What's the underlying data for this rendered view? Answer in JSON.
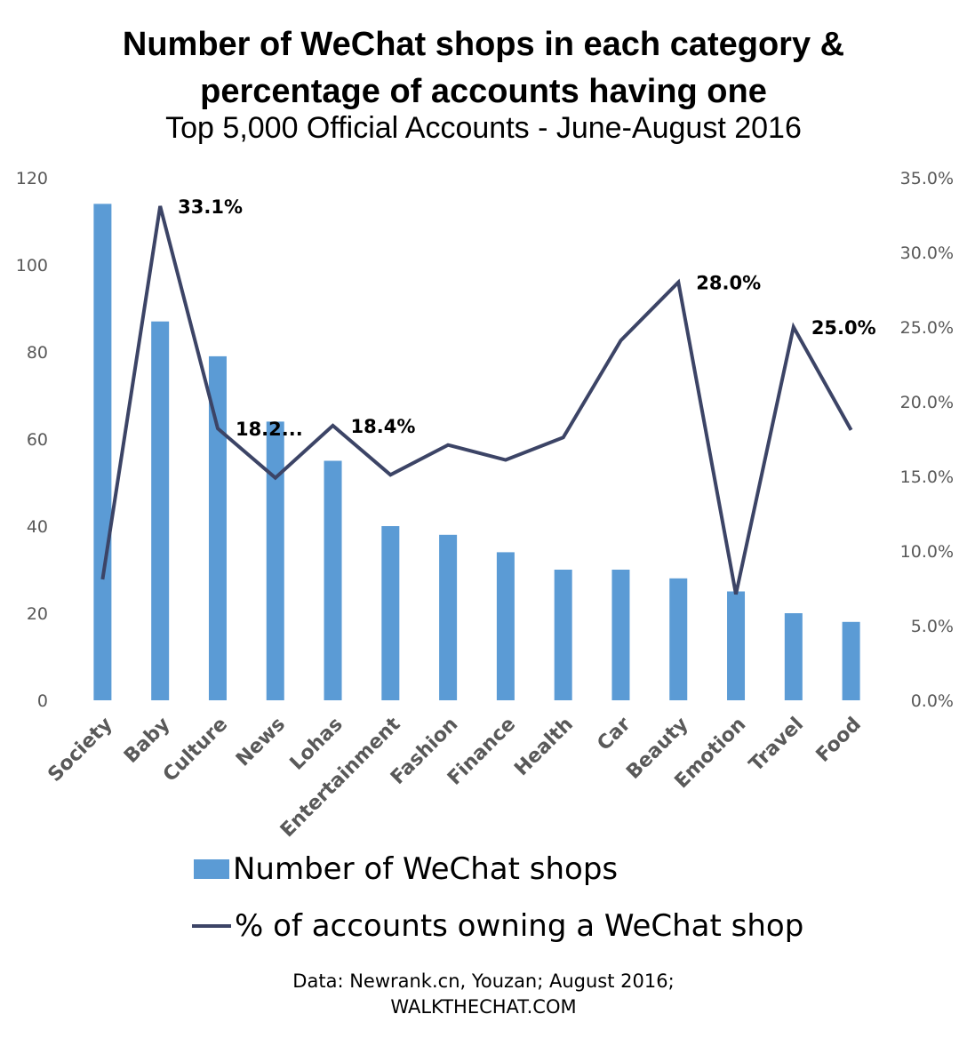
{
  "title_line1": "Number of WeChat shops in each category &",
  "title_line2": "percentage of accounts having one",
  "subtitle": "Top 5,000 Official Accounts - June-August 2016",
  "legend": {
    "bars": "Number of WeChat shops",
    "line": "% of accounts owning a WeChat shop"
  },
  "source_line1": "Data: Newrank.cn, Youzan; August 2016;",
  "source_line2": "WALKTHECHAT.COM",
  "colors": {
    "bar": "#5b9bd5",
    "line": "#3c4466",
    "axis_text": "#595959"
  },
  "chart_data": {
    "type": "bar",
    "categories": [
      "Society",
      "Baby",
      "Culture",
      "News",
      "Lohas",
      "Entertainment",
      "Fashion",
      "Finance",
      "Health",
      "Car",
      "Beauty",
      "Emotion",
      "Travel",
      "Food"
    ],
    "series": [
      {
        "name": "Number of WeChat shops",
        "type": "bar",
        "axis": "left",
        "values": [
          114,
          87,
          79,
          64,
          55,
          40,
          38,
          34,
          30,
          30,
          28,
          25,
          20,
          18
        ]
      },
      {
        "name": "% of accounts owning a WeChat shop",
        "type": "line",
        "axis": "right",
        "values": [
          8.1,
          33.1,
          18.2,
          14.9,
          18.4,
          15.1,
          17.1,
          16.1,
          17.6,
          24.1,
          28.0,
          7.1,
          25.0,
          18.1
        ]
      }
    ],
    "data_labels": [
      {
        "category": "Baby",
        "text": "33.1%"
      },
      {
        "category": "Culture",
        "text": "18.2..."
      },
      {
        "category": "Lohas",
        "text": "18.4%"
      },
      {
        "category": "Beauty",
        "text": "28.0%"
      },
      {
        "category": "Travel",
        "text": "25.0%"
      }
    ],
    "y_left": {
      "min": 0,
      "max": 120,
      "ticks": [
        "0",
        "20",
        "40",
        "60",
        "80",
        "100",
        "120"
      ]
    },
    "y_right": {
      "min": 0,
      "max": 35,
      "ticks": [
        "0.0%",
        "5.0%",
        "10.0%",
        "15.0%",
        "20.0%",
        "25.0%",
        "30.0%",
        "35.0%"
      ]
    },
    "grid": false,
    "legend_position": "bottom"
  }
}
